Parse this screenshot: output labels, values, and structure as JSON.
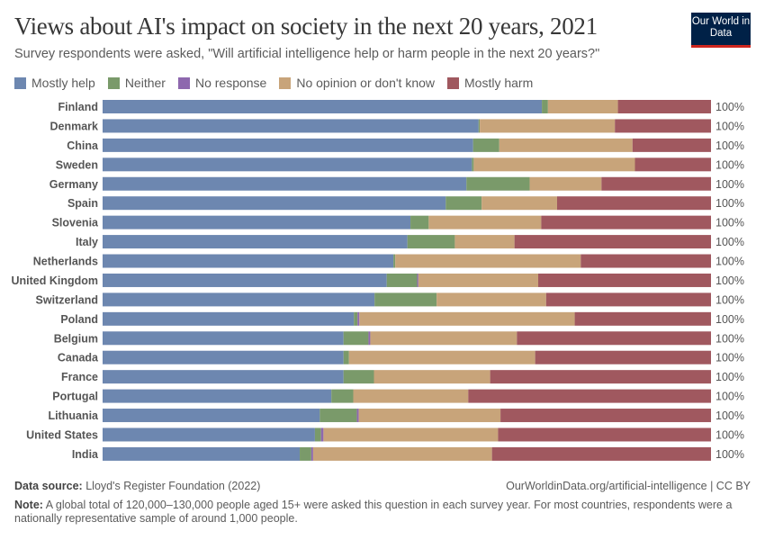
{
  "header": {
    "title": "Views about AI's impact on society in the next 20 years, 2021",
    "subtitle": "Survey respondents were asked, \"Will artificial intelligence help or harm people in the next 20 years?\"",
    "logo": "Our World in Data"
  },
  "chart_data": {
    "type": "bar",
    "orientation": "horizontal",
    "stacked": true,
    "legend_position": "top",
    "categories": [
      "Finland",
      "Denmark",
      "China",
      "Sweden",
      "Germany",
      "Spain",
      "Slovenia",
      "Italy",
      "Netherlands",
      "United Kingdom",
      "Switzerland",
      "Poland",
      "Belgium",
      "Canada",
      "France",
      "Portugal",
      "Lithuania",
      "United States",
      "India"
    ],
    "series": [
      {
        "name": "Mostly help",
        "color": "#6d87b0",
        "values": [
          72.2,
          61.8,
          60.9,
          60.7,
          59.8,
          56.4,
          50.6,
          50.1,
          47.8,
          46.7,
          44.7,
          41.3,
          39.6,
          39.6,
          39.6,
          37.6,
          35.7,
          34.9,
          32.4
        ]
      },
      {
        "name": "Neither",
        "color": "#7a9a6a",
        "values": [
          1.0,
          0.2,
          4.3,
          0.3,
          10.4,
          5.9,
          3.0,
          7.8,
          0.3,
          5.0,
          10.2,
          0.6,
          4.1,
          0.9,
          5.0,
          3.6,
          6.1,
          1.0,
          1.9
        ]
      },
      {
        "name": "No response",
        "color": "#8e68ae",
        "values": [
          0.0,
          0.0,
          0.0,
          0.0,
          0.0,
          0.0,
          0.0,
          0.0,
          0.0,
          0.2,
          0.0,
          0.3,
          0.3,
          0.0,
          0.0,
          0.0,
          0.3,
          0.4,
          0.3
        ]
      },
      {
        "name": "No opinion or don't know",
        "color": "#c8a47a",
        "values": [
          11.5,
          22.2,
          21.9,
          26.5,
          11.8,
          12.4,
          18.5,
          9.8,
          30.5,
          19.7,
          18.0,
          35.4,
          24.1,
          30.6,
          19.1,
          18.9,
          23.3,
          28.7,
          29.4
        ]
      },
      {
        "name": "Mostly harm",
        "color": "#a0585f",
        "values": [
          15.3,
          15.8,
          12.9,
          12.5,
          18.0,
          25.3,
          27.9,
          32.3,
          21.4,
          28.4,
          27.1,
          22.4,
          31.9,
          28.9,
          36.3,
          39.9,
          34.6,
          35.0,
          36.0
        ]
      }
    ],
    "row_totals": [
      "100%",
      "100%",
      "100%",
      "100%",
      "100%",
      "100%",
      "100%",
      "100%",
      "100%",
      "100%",
      "100%",
      "100%",
      "100%",
      "100%",
      "100%",
      "100%",
      "100%",
      "100%",
      "100%"
    ],
    "xlim": [
      0,
      100
    ]
  },
  "footer": {
    "source_label": "Data source:",
    "source": "Lloyd's Register Foundation (2022)",
    "url": "OurWorldinData.org/artificial-intelligence | CC BY",
    "note_label": "Note:",
    "note": "A global total of 120,000–130,000 people aged 15+ were asked this question in each survey year. For most countries, respondents were a nationally representative sample of around 1,000 people."
  }
}
